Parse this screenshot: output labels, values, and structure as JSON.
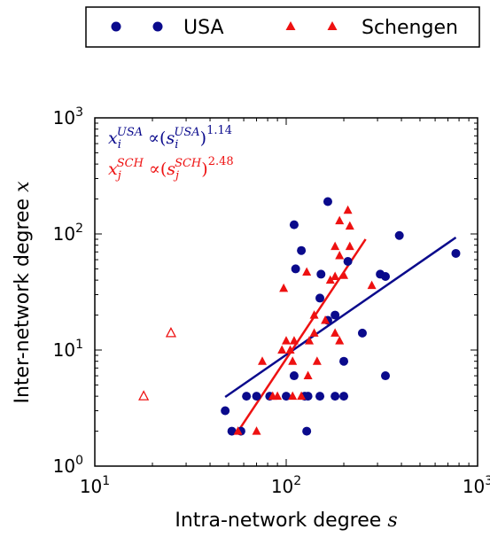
{
  "chart_data": {
    "type": "scatter",
    "xlabel": "Intra-network degree",
    "xlabel_var": "s",
    "ylabel": "Inter-network degree",
    "ylabel_var": "x",
    "xscale": "log",
    "yscale": "log",
    "xlim": [
      10,
      1000
    ],
    "ylim": [
      1,
      1000
    ],
    "x_ticks": [
      {
        "value": 10,
        "base": "10",
        "exp": "1"
      },
      {
        "value": 100,
        "base": "10",
        "exp": "2"
      },
      {
        "value": 1000,
        "base": "10",
        "exp": "3"
      }
    ],
    "y_ticks": [
      {
        "value": 1,
        "base": "10",
        "exp": "0"
      },
      {
        "value": 10,
        "base": "10",
        "exp": "1"
      },
      {
        "value": 100,
        "base": "10",
        "exp": "2"
      },
      {
        "value": 1000,
        "base": "10",
        "exp": "3"
      }
    ],
    "legend": {
      "placement": "top",
      "entries": [
        {
          "label": "USA",
          "marker": "circle",
          "color": "#0a0a8c"
        },
        {
          "label": "Schengen",
          "marker": "triangle",
          "color": "#ee1111"
        }
      ]
    },
    "annotations": [
      {
        "color": "#0a0a8c",
        "var": "x",
        "var_sub": "i",
        "var_sup": "USA",
        "op": " ∝(",
        "arg": "s",
        "arg_sub": "i",
        "arg_sup": "USA",
        "close": ")",
        "exponent": "1.14"
      },
      {
        "color": "#ee1111",
        "var": "x",
        "var_sub": "j",
        "var_sup": "SCH",
        "op": " ∝(",
        "arg": "s",
        "arg_sub": "j",
        "arg_sup": "SCH",
        "close": ")",
        "exponent": "2.48"
      }
    ],
    "series": [
      {
        "name": "USA",
        "marker": "circle",
        "color": "#0a0a8c",
        "points": [
          [
            48,
            3
          ],
          [
            52,
            2
          ],
          [
            58,
            2
          ],
          [
            62,
            4
          ],
          [
            70,
            4
          ],
          [
            82,
            4
          ],
          [
            100,
            4
          ],
          [
            110,
            6
          ],
          [
            125,
            4
          ],
          [
            128,
            2
          ],
          [
            130,
            4
          ],
          [
            150,
            4
          ],
          [
            180,
            4
          ],
          [
            200,
            4
          ],
          [
            200,
            8
          ],
          [
            165,
            18
          ],
          [
            180,
            20
          ],
          [
            150,
            28
          ],
          [
            152,
            45
          ],
          [
            112,
            50
          ],
          [
            120,
            72
          ],
          [
            110,
            120
          ],
          [
            165,
            190
          ],
          [
            210,
            58
          ],
          [
            250,
            14
          ],
          [
            310,
            45
          ],
          [
            330,
            43
          ],
          [
            330,
            6
          ],
          [
            390,
            97
          ],
          [
            770,
            68
          ]
        ]
      },
      {
        "name": "Schengen",
        "marker": "triangle",
        "color": "#ee1111",
        "points": [
          [
            18,
            4
          ],
          [
            25,
            14
          ],
          [
            56,
            2
          ],
          [
            70,
            2
          ],
          [
            75,
            8
          ],
          [
            85,
            4
          ],
          [
            90,
            4
          ],
          [
            95,
            10
          ],
          [
            97,
            34
          ],
          [
            100,
            12
          ],
          [
            105,
            10
          ],
          [
            108,
            8
          ],
          [
            108,
            4
          ],
          [
            110,
            12
          ],
          [
            120,
            4
          ],
          [
            128,
            47
          ],
          [
            130,
            6
          ],
          [
            132,
            12
          ],
          [
            140,
            20
          ],
          [
            140,
            14
          ],
          [
            145,
            8
          ],
          [
            160,
            18
          ],
          [
            170,
            40
          ],
          [
            180,
            43
          ],
          [
            180,
            78
          ],
          [
            180,
            14
          ],
          [
            190,
            65
          ],
          [
            190,
            12
          ],
          [
            200,
            44
          ],
          [
            210,
            160
          ],
          [
            215,
            117
          ],
          [
            215,
            78
          ],
          [
            190,
            130
          ],
          [
            280,
            36
          ]
        ]
      }
    ],
    "fits": [
      {
        "series": "USA",
        "color": "#0a0a8c",
        "x": [
          48,
          770
        ],
        "y": [
          3.94,
          93.2
        ]
      },
      {
        "series": "Schengen",
        "color": "#ee1111",
        "x": [
          56,
          260
        ],
        "y": [
          1.99,
          90.0
        ]
      }
    ]
  }
}
